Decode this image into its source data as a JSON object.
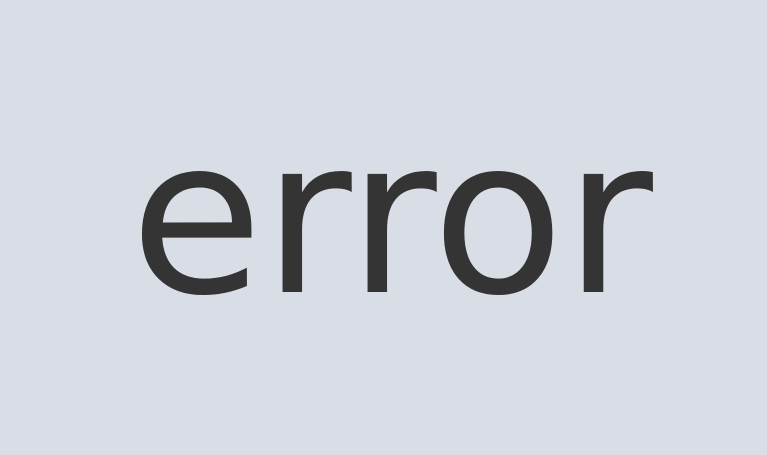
{
  "page": {
    "message": "error",
    "background_color": "#d9dde6",
    "text_color": "#343434"
  }
}
